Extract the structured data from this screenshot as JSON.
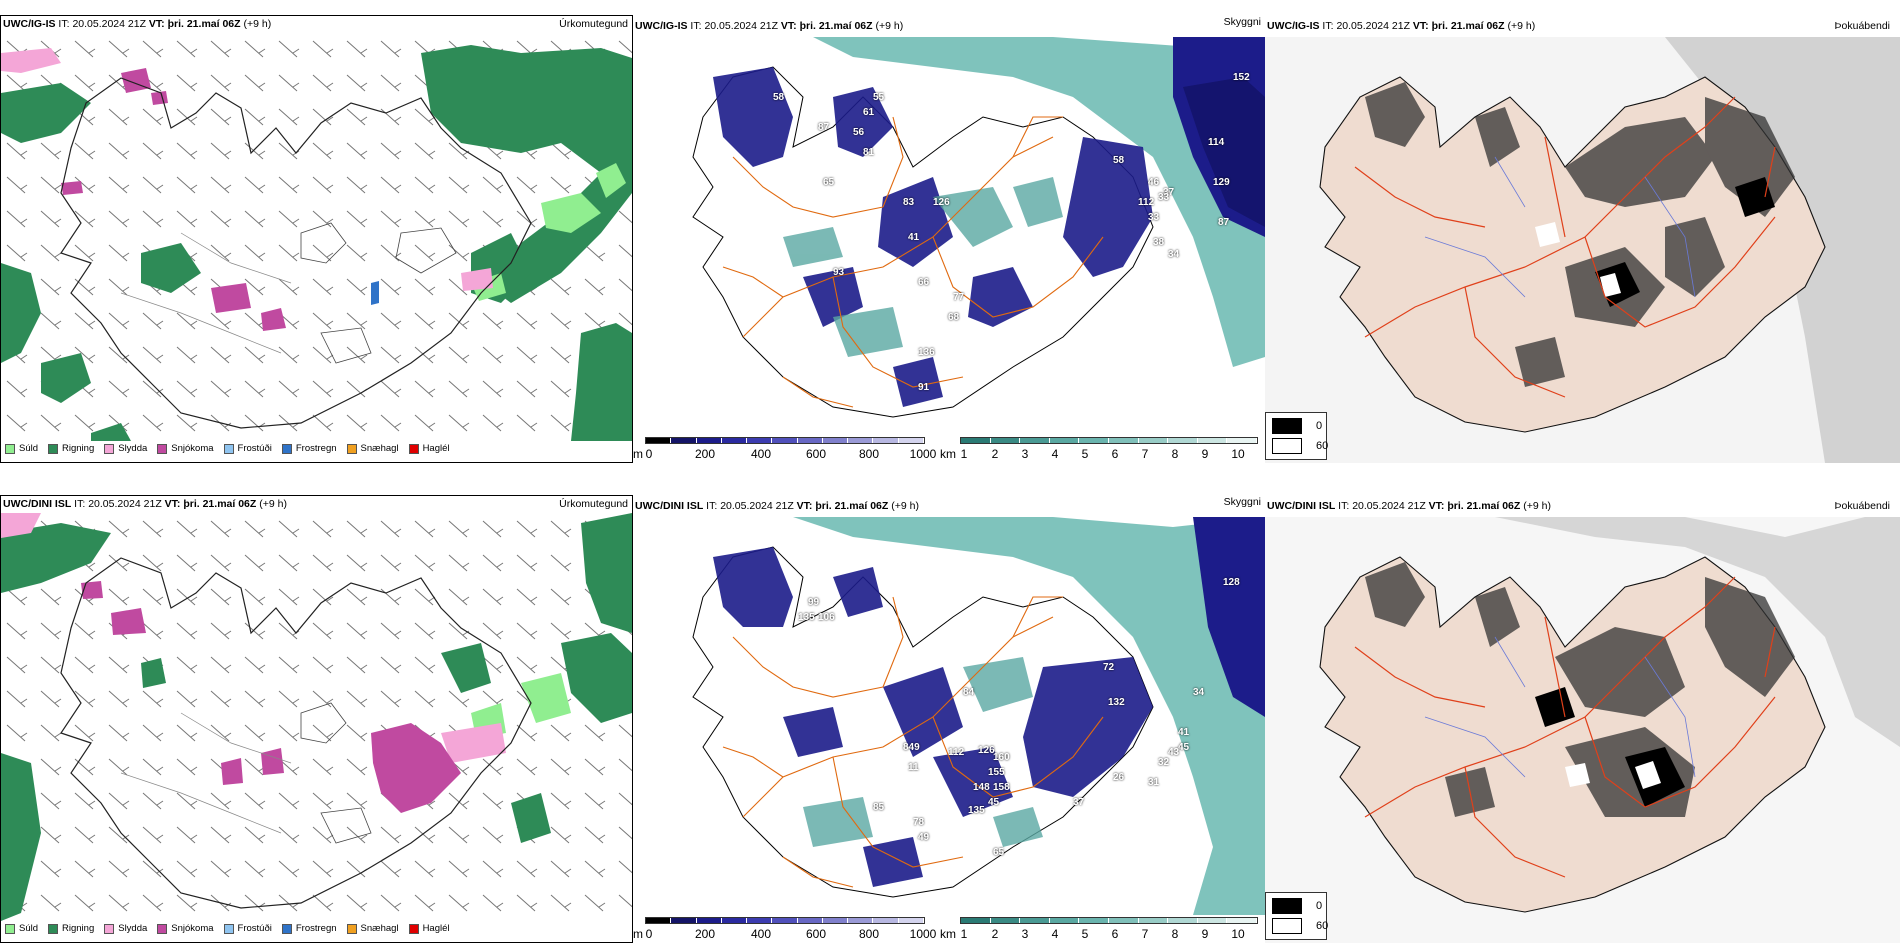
{
  "rows": [
    {
      "model": "UWC/IG-IS",
      "init_label": "IT:",
      "init_time": "20.05.2024 21Z",
      "valid_label": "VT:",
      "valid_time": "þri. 21.maí 06Z",
      "lead": "(+9 h)"
    },
    {
      "model": "UWC/DINI ISL",
      "init_label": "IT:",
      "init_time": "20.05.2024 21Z",
      "valid_label": "VT:",
      "valid_time": "þri. 21.maí 06Z",
      "lead": "(+9 h)"
    }
  ],
  "titles": {
    "precip": "Úrkomutegund",
    "visibility": "Skyggni",
    "fog": "Þokuábendi"
  },
  "precip_legend": [
    {
      "label": "Súld",
      "color": "#90ee90"
    },
    {
      "label": "Rigning",
      "color": "#2e8b57"
    },
    {
      "label": "Slydda",
      "color": "#f4a6d7"
    },
    {
      "label": "Snjókoma",
      "color": "#c04aa0"
    },
    {
      "label": "Frostúði",
      "color": "#8fc4f0"
    },
    {
      "label": "Frostregn",
      "color": "#2f73c8"
    },
    {
      "label": "Snæhagl",
      "color": "#f0a020"
    },
    {
      "label": "Haglél",
      "color": "#e00000"
    }
  ],
  "cloudbase_bar": {
    "unit": "m",
    "ticks": [
      "0",
      "200",
      "400",
      "600",
      "800",
      "1000"
    ],
    "colors": [
      "#000000",
      "#141466",
      "#1c1c8a",
      "#2a2aa0",
      "#3c3cb0",
      "#5050bb",
      "#6868c4",
      "#8080cc",
      "#9a9ad6",
      "#b8b8e2",
      "#d4d4ee"
    ]
  },
  "visibility_bar": {
    "unit": "km",
    "ticks": [
      "1",
      "2",
      "3",
      "4",
      "5",
      "6",
      "7",
      "8",
      "9",
      "10"
    ],
    "colors": [
      "#2a7a74",
      "#3a8a84",
      "#4a9a94",
      "#5aa8a2",
      "#6ab4ae",
      "#80c0ba",
      "#98ccc6",
      "#b0d8d4",
      "#cce6e2",
      "#e8f4f2"
    ]
  },
  "fog_legend": [
    {
      "label": "0",
      "color": "#000000"
    },
    {
      "label": "60",
      "color": "#ffffff"
    }
  ],
  "vis_labels_row1": [
    "152",
    "114",
    "129",
    "87",
    "112",
    "37",
    "33",
    "38",
    "34",
    "46",
    "33",
    "58",
    "65",
    "83",
    "126",
    "41",
    "93",
    "66",
    "77",
    "68",
    "136",
    "91",
    "58",
    "87",
    "56",
    "81",
    "55",
    "61"
  ],
  "vis_labels_row2": [
    "128",
    "41",
    "34",
    "45",
    "43",
    "32",
    "31",
    "26",
    "37",
    "65",
    "45",
    "158",
    "155",
    "160",
    "126",
    "112",
    "148",
    "135",
    "84",
    "72",
    "132",
    "99",
    "135",
    "106",
    "849",
    "11",
    "85",
    "78",
    "49"
  ]
}
